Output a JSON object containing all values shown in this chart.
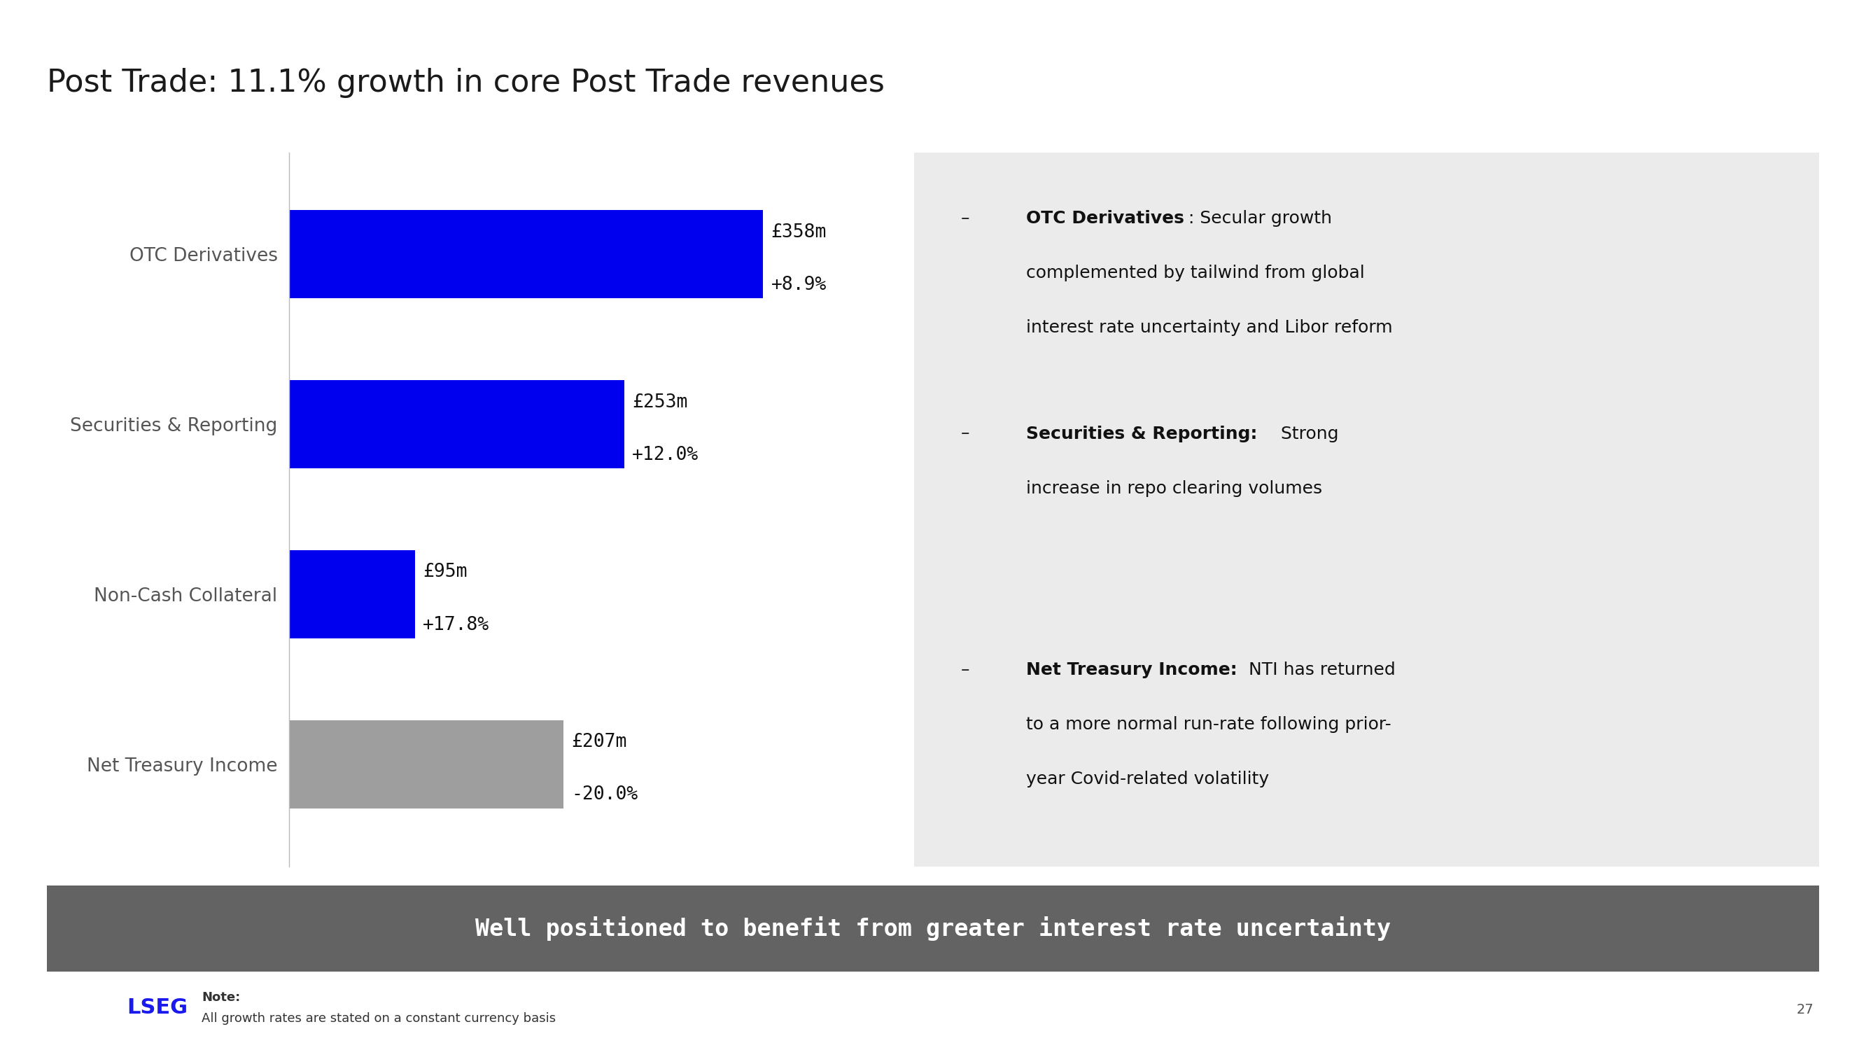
{
  "title": "Post Trade: 11.1% growth in core Post Trade revenues",
  "title_fontsize": 32,
  "title_color": "#1a1a1a",
  "background_color": "#ffffff",
  "categories": [
    "OTC Derivatives",
    "Securities & Reporting",
    "Non-Cash Collateral",
    "Net Treasury Income"
  ],
  "values": [
    358,
    253,
    95,
    207
  ],
  "bar_colors": [
    "#0000ee",
    "#0000ee",
    "#0000ee",
    "#9e9e9e"
  ],
  "bar_label_lines": [
    [
      "£358m",
      "+8.9%"
    ],
    [
      "£253m",
      "+12.0%"
    ],
    [
      "£95m",
      "+17.8%"
    ],
    [
      "£207m",
      "-20.0%"
    ]
  ],
  "bar_label_fontsize": 19,
  "ytick_fontsize": 19,
  "max_value": 430,
  "bullet_box_color": "#ebebeb",
  "bullet_items": [
    {
      "bold_part": "OTC Derivatives",
      "sep": ": ",
      "text_lines": [
        "Secular growth",
        "complemented by tailwind from global",
        "interest rate uncertainty and Libor reform"
      ]
    },
    {
      "bold_part": "Securities & Reporting:",
      "sep": " ",
      "text_lines": [
        "Strong",
        "increase in repo clearing volumes"
      ]
    },
    {
      "bold_part": "Net Treasury Income:",
      "sep": " ",
      "text_lines": [
        "NTI has returned",
        "to a more normal run-rate following prior-",
        "year Covid-related volatility"
      ]
    }
  ],
  "bullet_fontsize": 18,
  "footer_box_color": "#636363",
  "footer_text": "Well positioned to benefit from greater interest rate uncertainty",
  "footer_fontsize": 24,
  "footer_text_color": "#ffffff",
  "note_label": "Note:",
  "note_body": "All growth rates are stated on a constant currency basis",
  "note_fontsize": 13,
  "page_number": "27",
  "lseg_text": "LSEG",
  "lseg_fontsize": 22,
  "axis_line_color": "#bbbbbb"
}
